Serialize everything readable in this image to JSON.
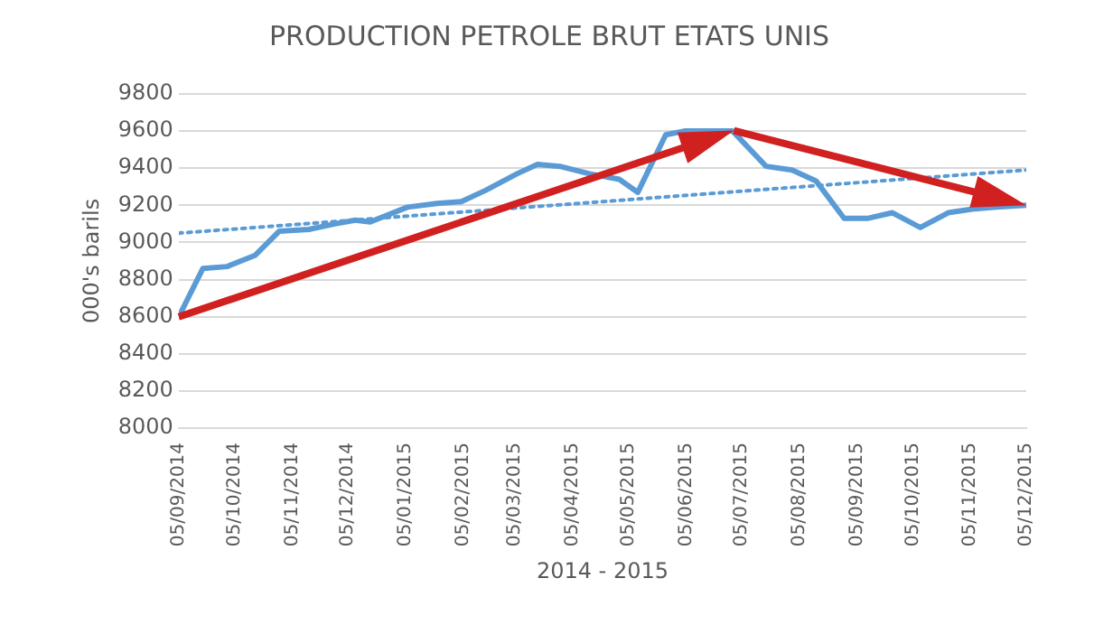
{
  "chart_data": {
    "type": "line",
    "title": "PRODUCTION PETROLE BRUT ETATS UNIS",
    "xlabel": "2014 - 2015",
    "ylabel": "000's barils",
    "xlim": [
      "2014-09-05",
      "2015-12-05"
    ],
    "xticks": [
      {
        "value": "2014-09-05",
        "label": "05/09/2014"
      },
      {
        "value": "2014-10-05",
        "label": "05/10/2014"
      },
      {
        "value": "2014-11-05",
        "label": "05/11/2014"
      },
      {
        "value": "2014-12-05",
        "label": "05/12/2014"
      },
      {
        "value": "2015-01-05",
        "label": "05/01/2015"
      },
      {
        "value": "2015-02-05",
        "label": "05/02/2015"
      },
      {
        "value": "2015-03-05",
        "label": "05/03/2015"
      },
      {
        "value": "2015-04-05",
        "label": "05/04/2015"
      },
      {
        "value": "2015-05-05",
        "label": "05/05/2015"
      },
      {
        "value": "2015-06-05",
        "label": "05/06/2015"
      },
      {
        "value": "2015-07-05",
        "label": "05/07/2015"
      },
      {
        "value": "2015-08-05",
        "label": "05/08/2015"
      },
      {
        "value": "2015-09-05",
        "label": "05/09/2015"
      },
      {
        "value": "2015-10-05",
        "label": "05/10/2015"
      },
      {
        "value": "2015-11-05",
        "label": "05/11/2015"
      },
      {
        "value": "2015-12-05",
        "label": "05/12/2015"
      }
    ],
    "ylim": [
      8000,
      9800
    ],
    "yticks": [
      8000,
      8200,
      8400,
      8600,
      8800,
      9000,
      9200,
      9400,
      9600,
      9800
    ],
    "grid": "y",
    "legend": false,
    "marker": "none",
    "series": [
      {
        "color": "#5b9bd5",
        "line_style": "solid",
        "x": [
          "2014-09-05",
          "2014-09-18",
          "2014-10-01",
          "2014-10-16",
          "2014-10-29",
          "2014-11-14",
          "2014-11-28",
          "2014-12-09",
          "2014-12-17",
          "2015-01-06",
          "2015-01-22",
          "2015-02-04",
          "2015-02-17",
          "2015-03-06",
          "2015-03-17",
          "2015-03-29",
          "2015-04-14",
          "2015-04-30",
          "2015-05-10",
          "2015-05-25",
          "2015-06-04",
          "2015-06-30",
          "2015-07-18",
          "2015-08-01",
          "2015-08-14",
          "2015-08-29",
          "2015-09-11",
          "2015-09-24",
          "2015-10-09",
          "2015-10-24",
          "2015-11-06",
          "2015-11-19",
          "2015-12-05"
        ],
        "values": [
          8600,
          8860,
          8870,
          8930,
          9060,
          9070,
          9100,
          9120,
          9110,
          9190,
          9210,
          9220,
          9280,
          9370,
          9420,
          9410,
          9370,
          9340,
          9270,
          9580,
          9600,
          9600,
          9410,
          9390,
          9330,
          9130,
          9130,
          9160,
          9080,
          9160,
          9180,
          9190,
          9200
        ]
      },
      {
        "type": "line",
        "color": "#5b9bd5",
        "line_style": "dotted",
        "x": [
          "2014-09-05",
          "2015-12-05"
        ],
        "values": [
          9050,
          9390
        ]
      }
    ]
  }
}
